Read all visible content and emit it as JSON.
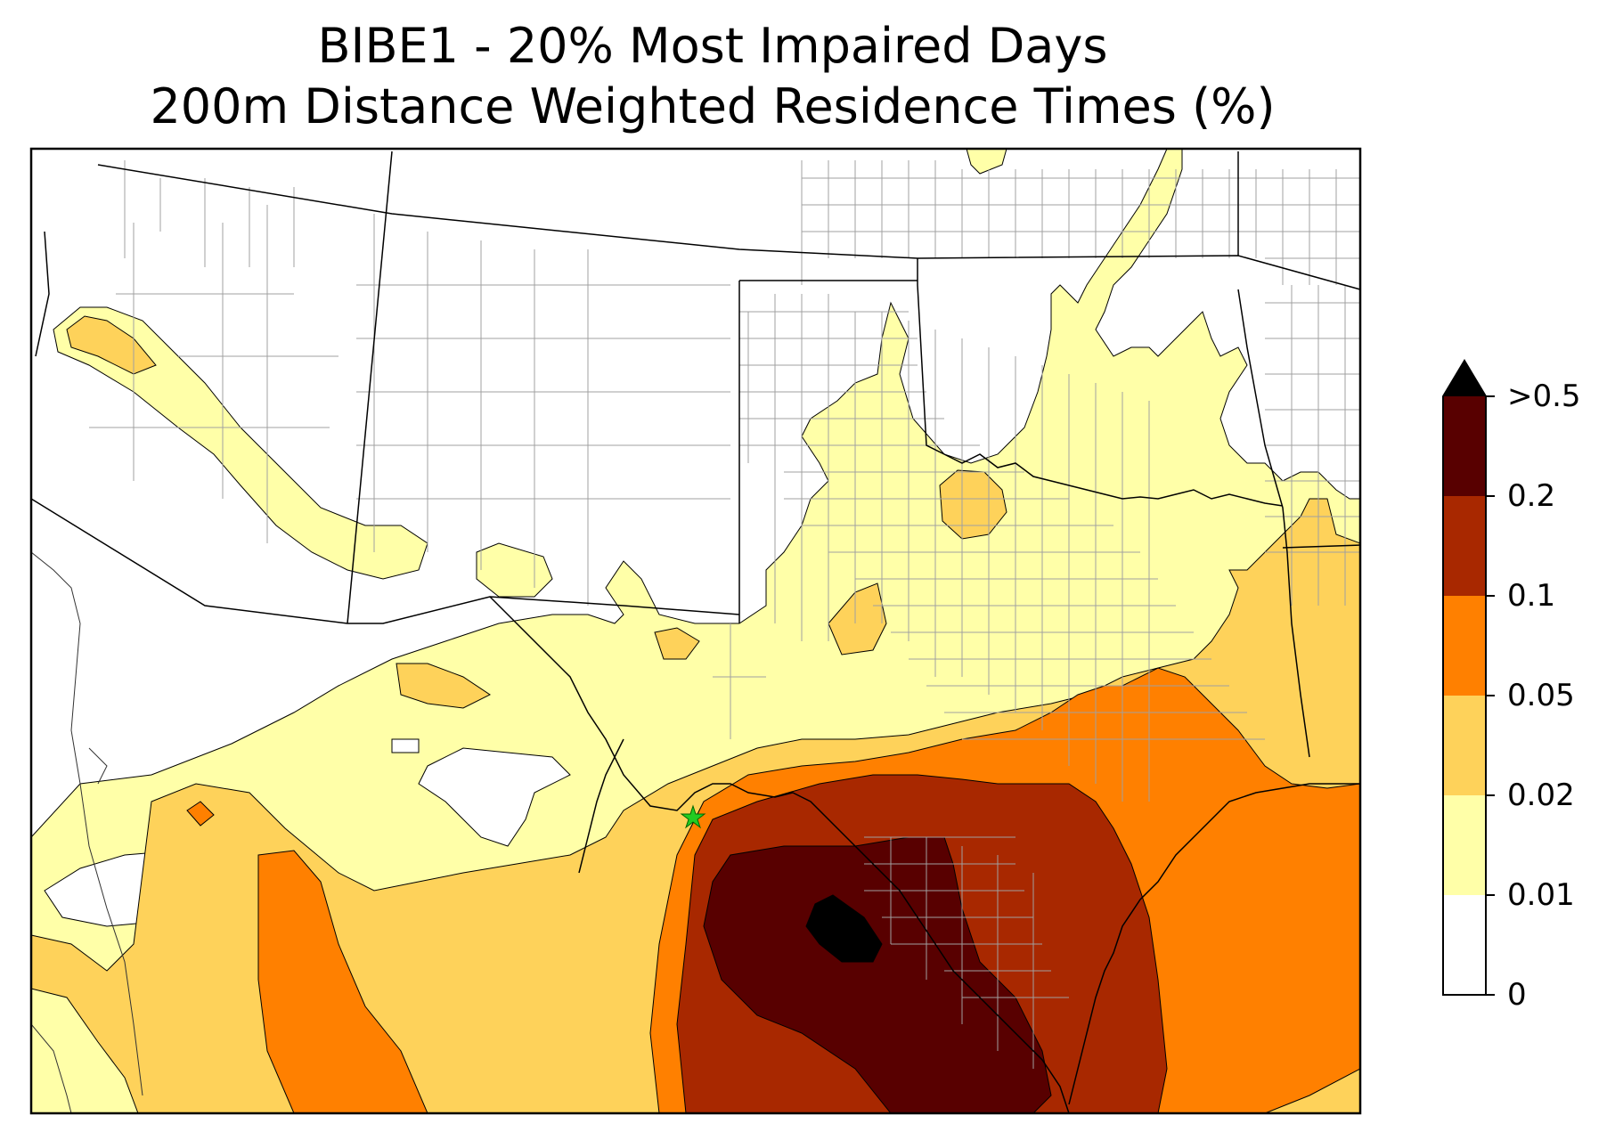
{
  "title": {
    "line1": "BIBE1 - 20% Most Impaired Days",
    "line2": "200m Distance Weighted Residence Times (%)"
  },
  "colorbar": {
    "extend": "max",
    "levels": [
      {
        "from": "0",
        "to": "0.01",
        "color": "#ffffff"
      },
      {
        "from": "0.01",
        "to": "0.02",
        "color": "#ffffa8"
      },
      {
        "from": "0.02",
        "to": "0.05",
        "color": "#fed25a"
      },
      {
        "from": "0.05",
        "to": "0.1",
        "color": "#ff8000"
      },
      {
        "from": "0.1",
        "to": "0.2",
        "color": "#a82800"
      },
      {
        "from": "0.2",
        "to": "0.5",
        "color": "#580000"
      }
    ],
    "overflow_color": "#000000",
    "tick_labels": [
      "0",
      "0.01",
      "0.02",
      "0.05",
      "0.1",
      "0.2",
      ">0.5"
    ]
  },
  "map": {
    "receptor_marker": "green-star-icon",
    "boundary_colors": {
      "state": "#000000",
      "county": "#a0a0a0"
    }
  }
}
